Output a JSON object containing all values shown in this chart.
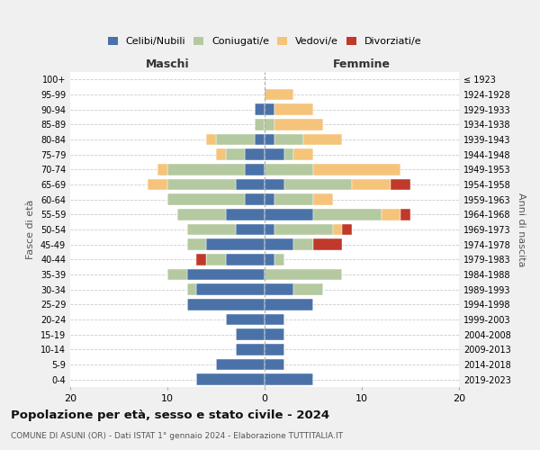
{
  "age_groups": [
    "100+",
    "95-99",
    "90-94",
    "85-89",
    "80-84",
    "75-79",
    "70-74",
    "65-69",
    "60-64",
    "55-59",
    "50-54",
    "45-49",
    "40-44",
    "35-39",
    "30-34",
    "25-29",
    "20-24",
    "15-19",
    "10-14",
    "5-9",
    "0-4"
  ],
  "birth_years": [
    "≤ 1923",
    "1924-1928",
    "1929-1933",
    "1934-1938",
    "1939-1943",
    "1944-1948",
    "1949-1953",
    "1954-1958",
    "1959-1963",
    "1964-1968",
    "1969-1973",
    "1974-1978",
    "1979-1983",
    "1984-1988",
    "1989-1993",
    "1994-1998",
    "1999-2003",
    "2004-2008",
    "2009-2013",
    "2014-2018",
    "2019-2023"
  ],
  "colors": {
    "celibi": "#4a72a8",
    "coniugati": "#b5c9a0",
    "vedovi": "#f5c47a",
    "divorziati": "#c0392b"
  },
  "males": {
    "celibi": [
      0,
      0,
      1,
      0,
      1,
      2,
      2,
      3,
      2,
      4,
      3,
      6,
      4,
      8,
      7,
      8,
      4,
      3,
      3,
      5,
      7
    ],
    "coniugati": [
      0,
      0,
      0,
      1,
      4,
      2,
      8,
      7,
      8,
      5,
      5,
      2,
      2,
      2,
      1,
      0,
      0,
      0,
      0,
      0,
      0
    ],
    "vedovi": [
      0,
      0,
      0,
      0,
      1,
      1,
      1,
      2,
      0,
      0,
      0,
      0,
      0,
      0,
      0,
      0,
      0,
      0,
      0,
      0,
      0
    ],
    "divorziati": [
      0,
      0,
      0,
      0,
      0,
      0,
      0,
      0,
      0,
      0,
      0,
      0,
      1,
      0,
      0,
      0,
      0,
      0,
      0,
      0,
      0
    ]
  },
  "females": {
    "nubili": [
      0,
      0,
      1,
      0,
      1,
      2,
      0,
      2,
      1,
      5,
      1,
      3,
      1,
      0,
      3,
      5,
      2,
      2,
      2,
      2,
      5
    ],
    "coniugate": [
      0,
      0,
      0,
      1,
      3,
      1,
      5,
      7,
      4,
      7,
      6,
      2,
      1,
      8,
      3,
      0,
      0,
      0,
      0,
      0,
      0
    ],
    "vedove": [
      0,
      3,
      4,
      5,
      4,
      2,
      9,
      4,
      2,
      2,
      1,
      0,
      0,
      0,
      0,
      0,
      0,
      0,
      0,
      0,
      0
    ],
    "divorziate": [
      0,
      0,
      0,
      0,
      0,
      0,
      0,
      2,
      0,
      1,
      1,
      3,
      0,
      0,
      0,
      0,
      0,
      0,
      0,
      0,
      0
    ]
  },
  "title": "Popolazione per età, sesso e stato civile - 2024",
  "subtitle": "COMUNE DI ASUNI (OR) - Dati ISTAT 1° gennaio 2024 - Elaborazione TUTTITALIA.IT",
  "xlabel_left": "Maschi",
  "xlabel_right": "Femmine",
  "ylabel_left": "Fasce di età",
  "ylabel_right": "Anni di nascita",
  "xlim": 20,
  "background_color": "#f0f0f0",
  "plot_background": "#ffffff",
  "legend_labels": [
    "Celibi/Nubili",
    "Coniugati/e",
    "Vedovi/e",
    "Divorziati/e"
  ]
}
